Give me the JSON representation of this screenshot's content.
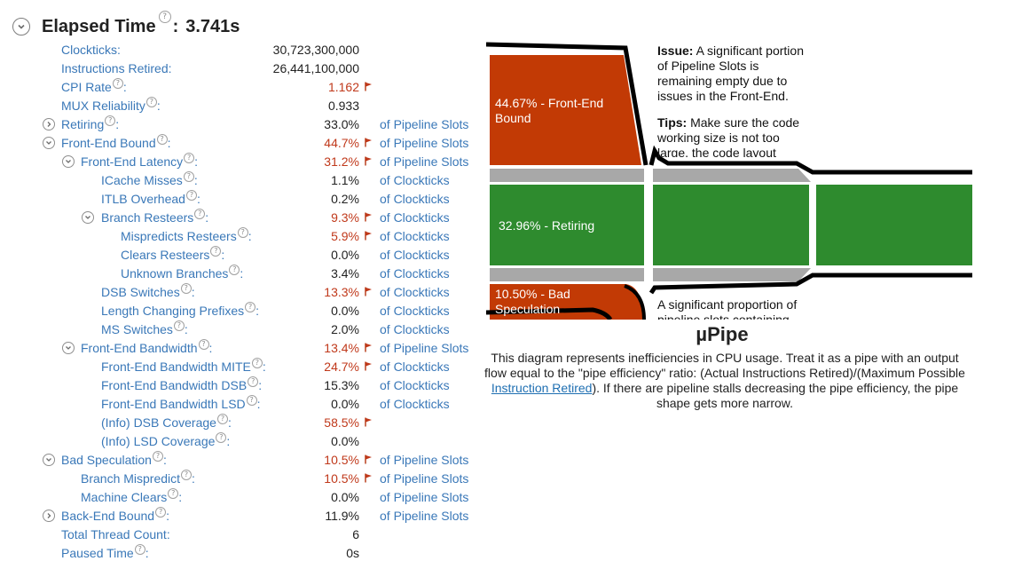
{
  "header": {
    "title": "Elapsed Time",
    "help_glyph": "?",
    "separator": ":",
    "value": "3.741s"
  },
  "rows": [
    {
      "label": "Clockticks:",
      "help": false,
      "toggle": null,
      "indent": 0,
      "value": "30,723,300,000",
      "flag": false,
      "unit": ""
    },
    {
      "label": "Instructions Retired:",
      "help": false,
      "toggle": null,
      "indent": 0,
      "value": "26,441,100,000",
      "flag": false,
      "unit": ""
    },
    {
      "label": "CPI Rate",
      "help": true,
      "toggle": null,
      "indent": 0,
      "value": "1.162",
      "flag": true,
      "unit": ""
    },
    {
      "label": "MUX Reliability",
      "help": true,
      "toggle": null,
      "indent": 0,
      "value": "0.933",
      "flag": false,
      "unit": ""
    },
    {
      "label": "Retiring",
      "help": true,
      "toggle": "collapsed",
      "indent": 0,
      "value": "33.0%",
      "flag": false,
      "unit": "of Pipeline Slots"
    },
    {
      "label": "Front-End Bound",
      "help": true,
      "toggle": "expanded",
      "indent": 0,
      "value": "44.7%",
      "flag": true,
      "unit": "of Pipeline Slots"
    },
    {
      "label": "Front-End Latency",
      "help": true,
      "toggle": "expanded",
      "indent": 1,
      "value": "31.2%",
      "flag": true,
      "unit": "of Pipeline Slots"
    },
    {
      "label": "ICache Misses",
      "help": true,
      "toggle": null,
      "indent": 2,
      "value": "1.1%",
      "flag": false,
      "unit": "of Clockticks"
    },
    {
      "label": "ITLB Overhead",
      "help": true,
      "toggle": null,
      "indent": 2,
      "value": "0.2%",
      "flag": false,
      "unit": "of Clockticks"
    },
    {
      "label": "Branch Resteers",
      "help": true,
      "toggle": "expanded",
      "indent": 2,
      "value": "9.3%",
      "flag": true,
      "unit": "of Clockticks"
    },
    {
      "label": "Mispredicts Resteers",
      "help": true,
      "toggle": null,
      "indent": 3,
      "value": "5.9%",
      "flag": true,
      "unit": "of Clockticks"
    },
    {
      "label": "Clears Resteers",
      "help": true,
      "toggle": null,
      "indent": 3,
      "value": "0.0%",
      "flag": false,
      "unit": "of Clockticks"
    },
    {
      "label": "Unknown Branches",
      "help": true,
      "toggle": null,
      "indent": 3,
      "value": "3.4%",
      "flag": false,
      "unit": "of Clockticks"
    },
    {
      "label": "DSB Switches",
      "help": true,
      "toggle": null,
      "indent": 2,
      "value": "13.3%",
      "flag": true,
      "unit": "of Clockticks"
    },
    {
      "label": "Length Changing Prefixes",
      "help": true,
      "toggle": null,
      "indent": 2,
      "value": "0.0%",
      "flag": false,
      "unit": "of Clockticks"
    },
    {
      "label": "MS Switches",
      "help": true,
      "toggle": null,
      "indent": 2,
      "value": "2.0%",
      "flag": false,
      "unit": "of Clockticks"
    },
    {
      "label": "Front-End Bandwidth",
      "help": true,
      "toggle": "expanded",
      "indent": 1,
      "value": "13.4%",
      "flag": true,
      "unit": "of Pipeline Slots"
    },
    {
      "label": "Front-End Bandwidth MITE",
      "help": true,
      "toggle": null,
      "indent": 2,
      "value": "24.7%",
      "flag": true,
      "unit": "of Clockticks"
    },
    {
      "label": "Front-End Bandwidth DSB",
      "help": true,
      "toggle": null,
      "indent": 2,
      "value": "15.3%",
      "flag": false,
      "unit": "of Clockticks"
    },
    {
      "label": "Front-End Bandwidth LSD",
      "help": true,
      "toggle": null,
      "indent": 2,
      "value": "0.0%",
      "flag": false,
      "unit": "of Clockticks"
    },
    {
      "label": "(Info) DSB Coverage",
      "help": true,
      "toggle": null,
      "indent": 2,
      "value": "58.5%",
      "flag": true,
      "unit": ""
    },
    {
      "label": "(Info) LSD Coverage",
      "help": true,
      "toggle": null,
      "indent": 2,
      "value": "0.0%",
      "flag": false,
      "unit": ""
    },
    {
      "label": "Bad Speculation",
      "help": true,
      "toggle": "expanded",
      "indent": 0,
      "value": "10.5%",
      "flag": true,
      "unit": "of Pipeline Slots"
    },
    {
      "label": "Branch Mispredict",
      "help": true,
      "toggle": null,
      "indent": 1,
      "value": "10.5%",
      "flag": true,
      "unit": "of Pipeline Slots"
    },
    {
      "label": "Machine Clears",
      "help": true,
      "toggle": null,
      "indent": 1,
      "value": "0.0%",
      "flag": false,
      "unit": "of Pipeline Slots"
    },
    {
      "label": "Back-End Bound",
      "help": true,
      "toggle": "collapsed",
      "indent": 0,
      "value": "11.9%",
      "flag": false,
      "unit": "of Pipeline Slots"
    },
    {
      "label": "Total Thread Count:",
      "help": false,
      "toggle": null,
      "indent": 0,
      "value": "6",
      "flag": false,
      "unit": ""
    },
    {
      "label": "Paused Time",
      "help": true,
      "toggle": null,
      "indent": 0,
      "value": "0s",
      "flag": false,
      "unit": ""
    }
  ],
  "diagram": {
    "segments": {
      "front_end": "44.67% - Front-End Bound",
      "retiring": "32.96% - Retiring",
      "bad_spec_line1": "10.50% - Bad",
      "bad_spec_line2": "Speculation"
    },
    "issue_box": {
      "issue_label": "Issue:",
      "issue_text": " A significant portion of Pipeline Slots is remaining empty due to issues in the Front-End.",
      "tips_label": "Tips:",
      "tips_text": " Make sure the code working size is not too large, the code layout"
    },
    "lower_box": {
      "text": "A significant proportion of pipeline slots containing"
    },
    "colors": {
      "front_end": "#c23a05",
      "retiring": "#2e8b2e",
      "bad_speculation": "#c23a05",
      "gap": "#a8a8a8",
      "outline": "#000000"
    }
  },
  "upipe": {
    "title": "µPipe",
    "desc_before": "This diagram represents inefficiencies in CPU usage. Treat it as a pipe with an output flow equal to the \"pipe efficiency\" ratio: (Actual Instructions Retired)/(Maximum Possible ",
    "link": "Instruction Retired",
    "desc_after": "). If there are pipeline stalls decreasing the pipe efficiency, the pipe shape gets more narrow."
  },
  "icons": {
    "collapse": "chevron-down-circle-icon",
    "expand": "chevron-right-circle-icon",
    "help": "question-circle-icon",
    "flag": "red-flag-icon"
  }
}
